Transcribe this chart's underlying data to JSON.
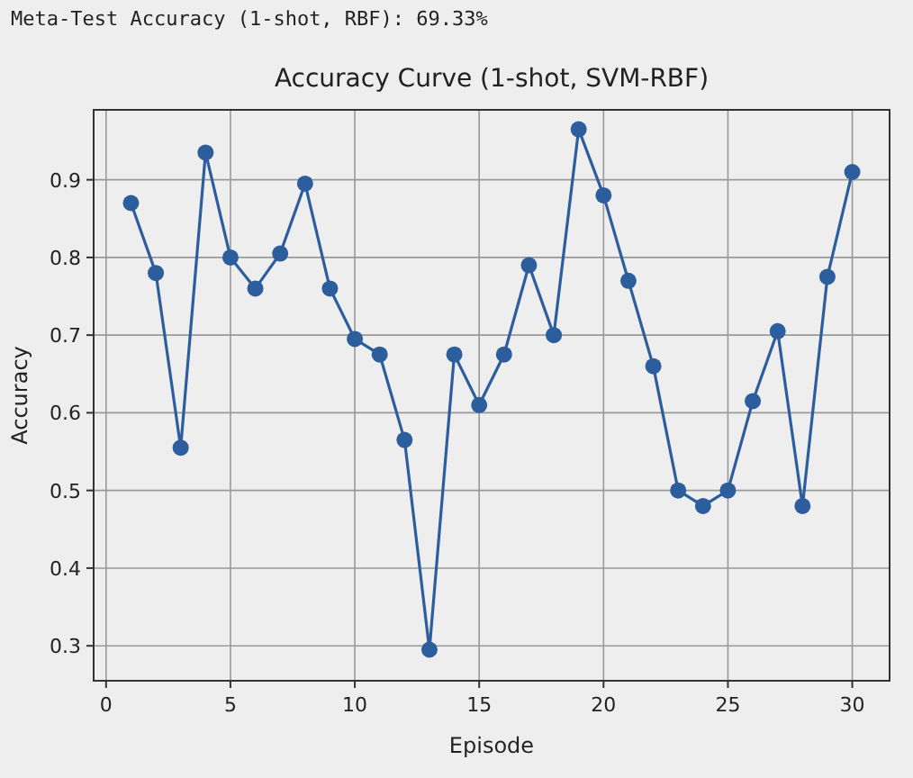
{
  "chart_data": {
    "type": "line",
    "title": "Accuracy Curve (1-shot, SVM-RBF)",
    "xlabel": "Episode",
    "ylabel": "Accuracy",
    "annotations": [
      "Meta-Test Accuracy (1-shot, RBF): 69.33%"
    ],
    "x": [
      1,
      2,
      3,
      4,
      5,
      6,
      7,
      8,
      9,
      10,
      11,
      12,
      13,
      14,
      15,
      16,
      17,
      18,
      19,
      20,
      21,
      22,
      23,
      24,
      25,
      26,
      27,
      28,
      29,
      30
    ],
    "series": [
      {
        "color": "#2c5d9c",
        "values": [
          0.87,
          0.78,
          0.555,
          0.935,
          0.8,
          0.76,
          0.805,
          0.895,
          0.76,
          0.695,
          0.675,
          0.565,
          0.295,
          0.675,
          0.61,
          0.675,
          0.79,
          0.7,
          0.965,
          0.88,
          0.77,
          0.66,
          0.5,
          0.48,
          0.5,
          0.615,
          0.705,
          0.48,
          0.775,
          0.91
        ]
      }
    ],
    "xlim": [
      -0.5,
      31.5
    ],
    "xticks": [
      0,
      5,
      10,
      15,
      20,
      25,
      30
    ],
    "ylim": [
      0.255,
      0.99
    ],
    "yticks": [
      0.3,
      0.4,
      0.5,
      0.6,
      0.7,
      0.8,
      0.9
    ],
    "grid": true,
    "marker": "circle",
    "line_style": "solid"
  }
}
